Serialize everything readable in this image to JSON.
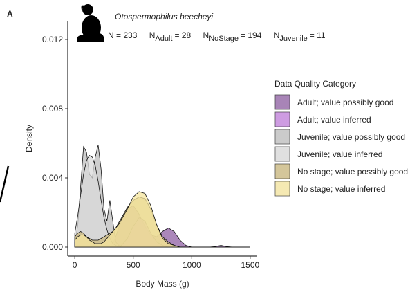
{
  "chart_data": {
    "type": "density",
    "panel_label": "A",
    "title": "Otospermophilus beecheyi",
    "annotations": [
      "N = 233",
      "N",
      "Adult",
      "= 28",
      "N",
      "NoStage",
      "= 194",
      "N",
      "Juvenile",
      "= 11"
    ],
    "x_label": "Body Mass (g)",
    "y_label": "Density",
    "legend_title": "Data Quality Category",
    "xlim": [
      -60,
      1560
    ],
    "ylim": [
      -0.00052,
      0.01308
    ],
    "xticks": [
      0,
      500,
      1000,
      1500
    ],
    "yticks": [
      {
        "value": 0,
        "label": "0.000"
      },
      {
        "value": 0.004,
        "label": "0.004"
      },
      {
        "value": 0.008,
        "label": "0.008"
      },
      {
        "value": 0.012,
        "label": "0.012"
      }
    ],
    "x": [
      0,
      25,
      50,
      75,
      100,
      125,
      150,
      175,
      200,
      225,
      250,
      275,
      300,
      325,
      350,
      375,
      400,
      450,
      500,
      550,
      600,
      650,
      700,
      750,
      800,
      850,
      900,
      950,
      1000,
      1050,
      1100,
      1150,
      1200,
      1250,
      1300,
      1350,
      1400,
      1450,
      1500
    ],
    "series": [
      {
        "name": "Adult; value possibly good",
        "color": "#8f5fa3",
        "values": [
          0,
          0,
          0,
          0,
          0,
          0,
          0,
          0,
          0,
          0,
          0,
          0,
          0,
          0.0002,
          0.0006,
          0.0011,
          0.0016,
          0.0022,
          0.0024,
          0.0019,
          0.0012,
          0.0007,
          0.0006,
          0.0009,
          0.0011,
          0.0009,
          0.0004,
          0.0001,
          0,
          0,
          0,
          0,
          3e-05,
          0.0001,
          3e-05,
          0,
          0,
          0,
          0
        ]
      },
      {
        "name": "Adult; value inferred",
        "color": "#c27fdc",
        "values": [
          0,
          0,
          0,
          0,
          0,
          0,
          0,
          0,
          0,
          0,
          0,
          0,
          0,
          0,
          0,
          0,
          0.0001,
          0.0005,
          0.0012,
          0.0017,
          0.0015,
          0.0008,
          0.0003,
          0.0001,
          0,
          0,
          0,
          0,
          0,
          0,
          0,
          0,
          0,
          0,
          0,
          0,
          0,
          0,
          0
        ]
      },
      {
        "name": "Juvenile; value possibly good",
        "color": "#bdbdbd",
        "values": [
          0.0003,
          0.0012,
          0.0035,
          0.0058,
          0.0055,
          0.0042,
          0.004,
          0.0052,
          0.0059,
          0.0045,
          0.0022,
          0.0015,
          0.0027,
          0.0015,
          0.0003,
          0.0001,
          0,
          0,
          0,
          0,
          0,
          0,
          0,
          0,
          0,
          0,
          0,
          0,
          0,
          0,
          0,
          0,
          0,
          0,
          0,
          0,
          0,
          0,
          0
        ]
      },
      {
        "name": "Juvenile; value inferred",
        "color": "#dadada",
        "values": [
          0.0008,
          0.0018,
          0.003,
          0.0042,
          0.005,
          0.0053,
          0.0052,
          0.0047,
          0.0038,
          0.0027,
          0.0017,
          0.001,
          0.0005,
          0.0002,
          0.0001,
          0,
          0,
          0,
          0,
          0,
          0,
          0,
          0,
          0,
          0,
          0,
          0,
          0,
          0,
          0,
          0,
          0,
          0,
          0,
          0,
          0,
          0,
          0,
          0
        ]
      },
      {
        "name": "No stage; value possibly good",
        "color": "#c9b77c",
        "values": [
          0.0006,
          0.0008,
          0.0009,
          0.0008,
          0.0006,
          0.0005,
          0.0004,
          0.0004,
          0.0004,
          0.0005,
          0.0006,
          0.0007,
          0.0008,
          0.0009,
          0.0011,
          0.0014,
          0.0017,
          0.0023,
          0.0027,
          0.0029,
          0.0028,
          0.0022,
          0.0013,
          0.0006,
          0.0003,
          0.0001,
          0,
          0,
          0,
          0,
          0,
          0,
          0,
          0,
          0,
          0,
          0,
          0,
          0
        ]
      },
      {
        "name": "No stage; value inferred",
        "color": "#f6e59e",
        "values": [
          0.0004,
          0.0006,
          0.0007,
          0.0007,
          0.0006,
          0.0004,
          0.0003,
          0.0002,
          0.0002,
          0.0002,
          0.0003,
          0.0005,
          0.0007,
          0.0009,
          0.0011,
          0.0013,
          0.0016,
          0.0022,
          0.0029,
          0.0032,
          0.0031,
          0.0024,
          0.0013,
          0.0005,
          0.0002,
          0.0001,
          0,
          0,
          0,
          0,
          0,
          0,
          0,
          0,
          0,
          0,
          0,
          0,
          0
        ]
      }
    ]
  }
}
